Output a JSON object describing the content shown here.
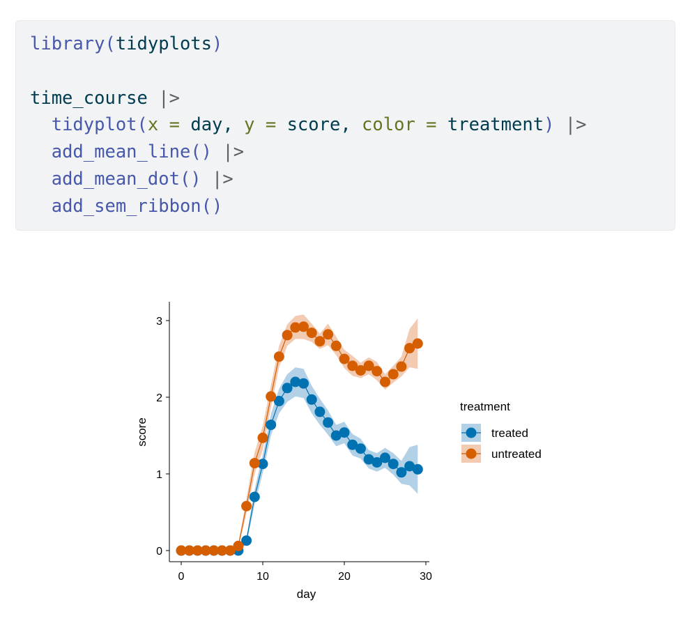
{
  "code": {
    "line1": {
      "fn": "library",
      "open": "(",
      "arg": "tidyplots",
      "close": ")"
    },
    "line2": {
      "obj": "time_course",
      "pipe": "|>"
    },
    "line3": {
      "fn": "tidyplot",
      "open": "(",
      "k1": "x",
      "eq1": "=",
      "v1": "day",
      "comma1": ",",
      "k2": "y",
      "eq2": "=",
      "v2": "score",
      "comma2": ",",
      "k3": "color",
      "eq3": "=",
      "v3": "treatment",
      "close": ")",
      "pipe": "|>"
    },
    "line4": {
      "fn": "add_mean_line",
      "parens": "()",
      "pipe": "|>"
    },
    "line5": {
      "fn": "add_mean_dot",
      "parens": "()",
      "pipe": "|>"
    },
    "line6": {
      "fn": "add_sem_ribbon",
      "parens": "()"
    }
  },
  "chart_data": {
    "type": "line",
    "xlabel": "day",
    "ylabel": "score",
    "xlim": [
      -1.5,
      30.5
    ],
    "ylim": [
      -0.15,
      3.25
    ],
    "x_ticks": [
      0,
      10,
      20,
      30
    ],
    "y_ticks": [
      0,
      1,
      2,
      3
    ],
    "grid": false,
    "legend": {
      "title": "treatment",
      "position": "right"
    },
    "x": [
      0,
      1,
      2,
      3,
      4,
      5,
      6,
      7,
      8,
      9,
      10,
      11,
      12,
      13,
      14,
      15,
      16,
      17,
      18,
      19,
      20,
      21,
      22,
      23,
      24,
      25,
      26,
      27,
      28,
      29
    ],
    "series": [
      {
        "name": "treated",
        "color": "#0072b2",
        "ribbon_color": "#7fb0d6",
        "values": [
          0,
          0,
          0,
          0,
          0,
          0,
          0,
          0,
          0.13,
          0.7,
          1.13,
          1.64,
          1.95,
          2.12,
          2.2,
          2.18,
          1.97,
          1.81,
          1.67,
          1.5,
          1.54,
          1.38,
          1.33,
          1.19,
          1.15,
          1.21,
          1.13,
          1.02,
          1.1,
          1.06
        ],
        "sem": [
          0,
          0,
          0,
          0,
          0,
          0,
          0,
          0.02,
          0.05,
          0.1,
          0.12,
          0.14,
          0.16,
          0.18,
          0.19,
          0.19,
          0.18,
          0.17,
          0.16,
          0.14,
          0.14,
          0.14,
          0.13,
          0.12,
          0.12,
          0.13,
          0.14,
          0.15,
          0.25,
          0.32
        ]
      },
      {
        "name": "untreated",
        "color": "#d55e00",
        "ribbon_color": "#eba77f",
        "values": [
          0,
          0,
          0,
          0,
          0,
          0,
          0,
          0.06,
          0.58,
          1.14,
          1.47,
          2.01,
          2.53,
          2.81,
          2.91,
          2.92,
          2.84,
          2.73,
          2.82,
          2.67,
          2.5,
          2.41,
          2.35,
          2.41,
          2.34,
          2.2,
          2.3,
          2.4,
          2.64,
          2.7
        ],
        "sem": [
          0,
          0,
          0,
          0,
          0,
          0,
          0,
          0.03,
          0.1,
          0.14,
          0.16,
          0.15,
          0.14,
          0.14,
          0.15,
          0.16,
          0.12,
          0.1,
          0.14,
          0.12,
          0.12,
          0.13,
          0.1,
          0.11,
          0.12,
          0.1,
          0.11,
          0.13,
          0.25,
          0.33
        ]
      }
    ]
  }
}
